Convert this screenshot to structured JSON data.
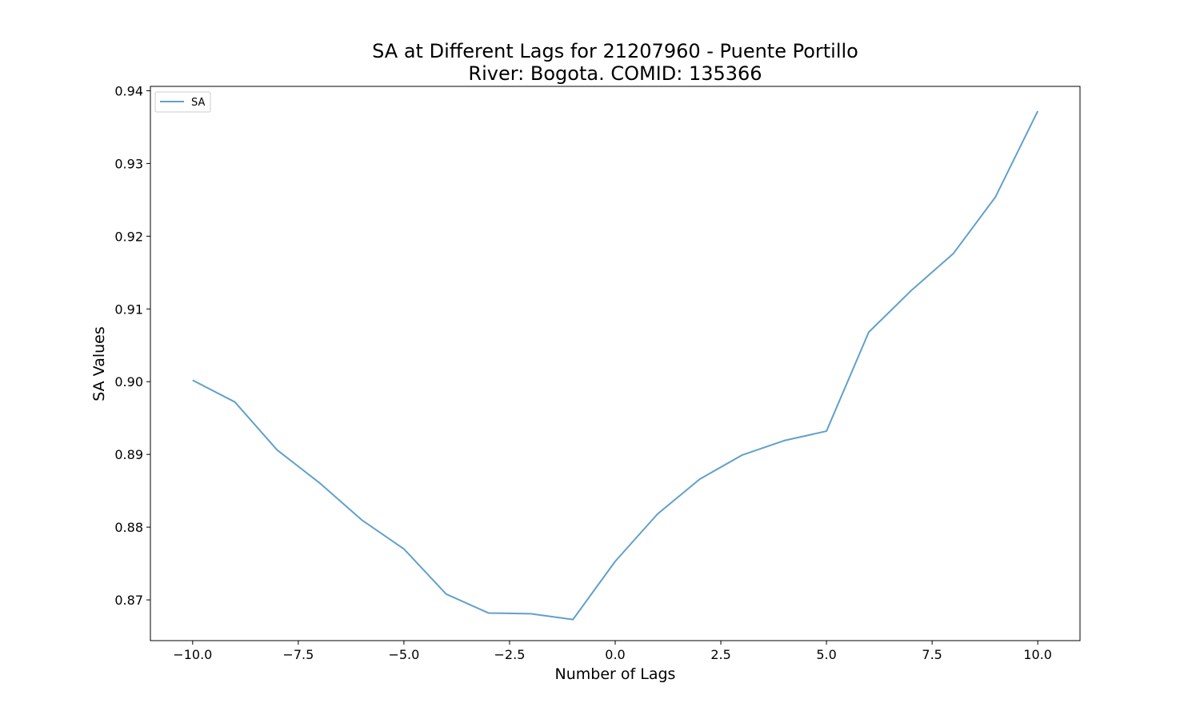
{
  "chart_data": {
    "type": "line",
    "title_line1": "SA at Different Lags for 21207960 - Puente Portillo",
    "title_line2": "River: Bogota. COMID: 135366",
    "xlabel": "Number of Lags",
    "ylabel": "SA Values",
    "xlim": [
      -11,
      11
    ],
    "ylim": [
      0.8644,
      0.9406
    ],
    "x_ticks": [
      -10.0,
      -7.5,
      -5.0,
      -2.5,
      0.0,
      2.5,
      5.0,
      7.5,
      10.0
    ],
    "x_tick_labels": [
      "−10.0",
      "−7.5",
      "−5.0",
      "−2.5",
      "0.0",
      "2.5",
      "5.0",
      "7.5",
      "10.0"
    ],
    "y_ticks": [
      0.87,
      0.88,
      0.89,
      0.9,
      0.91,
      0.92,
      0.93,
      0.94
    ],
    "y_tick_labels": [
      "0.87",
      "0.88",
      "0.89",
      "0.90",
      "0.91",
      "0.92",
      "0.93",
      "0.94"
    ],
    "grid": false,
    "legend_position": "top-left",
    "series": [
      {
        "name": "SA",
        "color": "#1f77b4",
        "x": [
          -10,
          -9,
          -8,
          -7,
          -6,
          -5,
          -4,
          -3,
          -2,
          -1,
          0,
          1,
          2,
          3,
          4,
          5,
          6,
          7,
          8,
          9,
          10
        ],
        "y": [
          0.9002,
          0.8972,
          0.8906,
          0.8861,
          0.881,
          0.877,
          0.8708,
          0.8682,
          0.8681,
          0.8673,
          0.8753,
          0.8818,
          0.8866,
          0.8899,
          0.8919,
          0.8932,
          0.9068,
          0.9125,
          0.9176,
          0.9254,
          0.9372
        ]
      }
    ]
  }
}
